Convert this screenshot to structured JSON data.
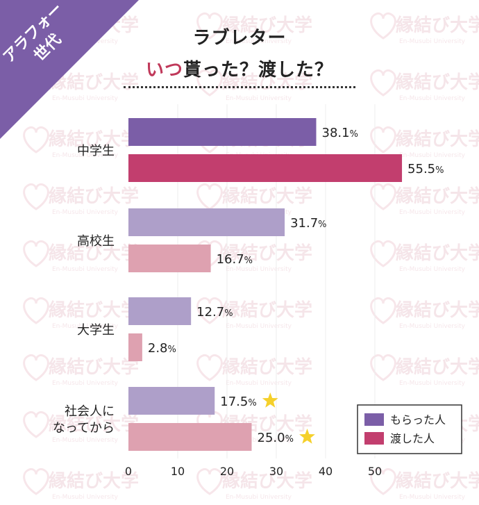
{
  "badge": {
    "line1": "アラフォー",
    "line2": "世代"
  },
  "title": {
    "line1": "ラブレター",
    "line2_highlight": "いつ",
    "line2_rest": "貰った？渡した？"
  },
  "watermark": {
    "main": "縁結び大学",
    "sub": "En-Musubi University"
  },
  "colors": {
    "badge": "#7b5ea7",
    "title_highlight": "#c0395a",
    "received_strong": "#7b5ea7",
    "given_strong": "#c23e6e",
    "received_light": "#ae9fc9",
    "given_light": "#dea1b0",
    "star": "#f5d02b"
  },
  "chart_data": {
    "type": "bar",
    "orientation": "horizontal",
    "categories": [
      "中学生",
      "高校生",
      "大学生",
      "社会人に\nなってから"
    ],
    "series": [
      {
        "name": "もらった人",
        "values": [
          38.1,
          31.7,
          12.7,
          17.5
        ]
      },
      {
        "name": "渡した人",
        "values": [
          55.5,
          16.7,
          2.8,
          25.0
        ]
      }
    ],
    "value_labels": [
      [
        "38.1%",
        "31.7%",
        "12.7%",
        "17.5%"
      ],
      [
        "55.5%",
        "16.7%",
        "2.8%",
        "25.0%"
      ]
    ],
    "highlight_star": [
      [
        false,
        false,
        false,
        true
      ],
      [
        false,
        false,
        false,
        true
      ]
    ],
    "xlim": [
      0,
      55
    ],
    "xticks": [
      0,
      10,
      20,
      30,
      40,
      50
    ],
    "legend_position": "bottom-right",
    "grid": true
  }
}
